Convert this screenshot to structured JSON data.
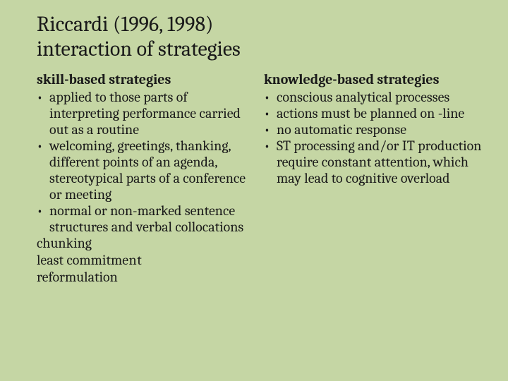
{
  "background_color": "#c5d6a4",
  "text_color": "#1a1a1a",
  "font_family": "Cambria, Georgia, 'Times New Roman', serif",
  "title_fontsize": 30,
  "body_fontsize": 20,
  "title_lines": {
    "l1": "Riccardi (1996, 1998)",
    "l2": " interaction of  strategies"
  },
  "left": {
    "heading": "skill-based strategies",
    "bullets": {
      "b1": "applied to those parts of interpreting performance carried out as a routine",
      "b2": "welcoming, greetings, thanking, different points of an agenda, stereotypical parts of a conference or meeting",
      "b3": "normal or non-marked sentence structures and verbal collocations"
    },
    "plain": {
      "p1": "chunking",
      "p2_a": "least commitm",
      "p2_b": "ent",
      "p3": "reformulation"
    }
  },
  "right": {
    "heading": "knowledge-based strategies",
    "bullets": {
      "b1": "conscious analytical processes",
      "b2": "actions must be planned on -line",
      "b3": "no automatic response",
      "b4": "ST processing and/or IT production require constant attention, which may lead to cognitive overload"
    }
  }
}
